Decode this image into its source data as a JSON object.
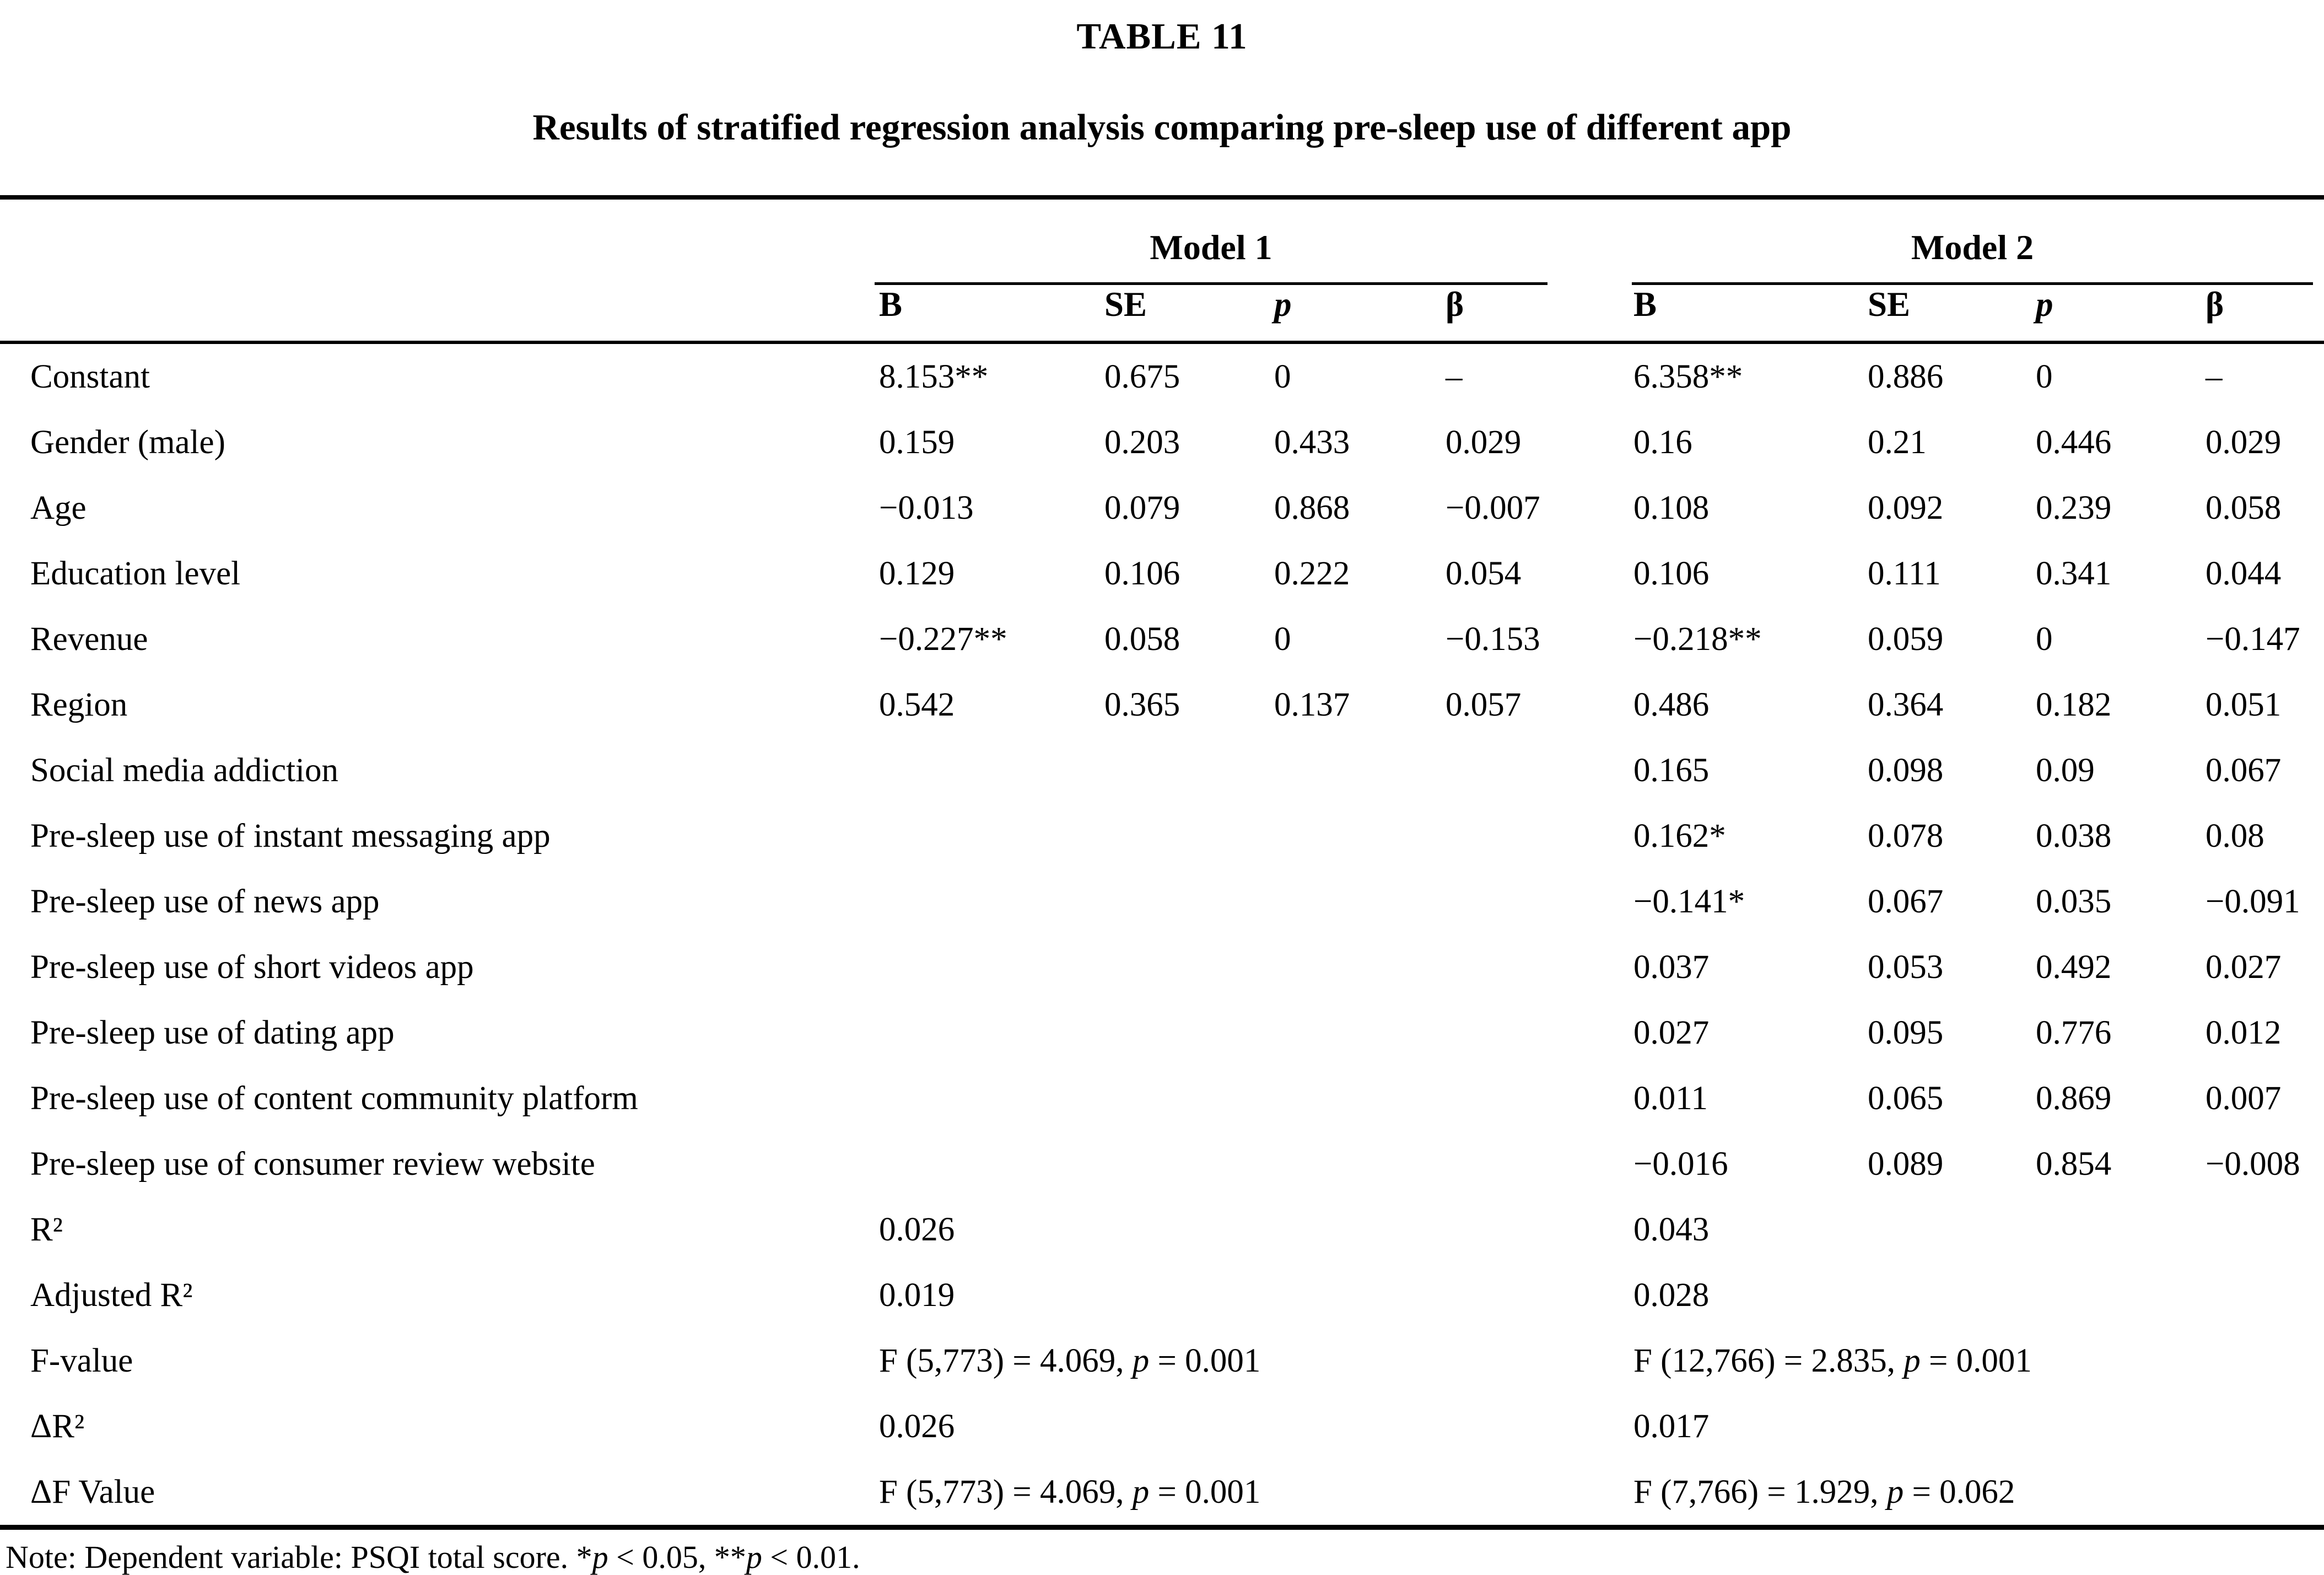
{
  "title": "TABLE 11",
  "subtitle": "Results of stratified regression analysis comparing pre-sleep use of different app",
  "table": {
    "model_headers": [
      "Model 1",
      "Model 2"
    ],
    "column_headers": [
      "B",
      "SE",
      "p",
      "β",
      "B",
      "SE",
      "p",
      "β"
    ],
    "rows": [
      {
        "label": "Constant",
        "cells": [
          "8.153**",
          "0.675",
          "0",
          "–",
          "6.358**",
          "0.886",
          "0",
          "–"
        ]
      },
      {
        "label": "Gender (male)",
        "cells": [
          "0.159",
          "0.203",
          "0.433",
          "0.029",
          "0.16",
          "0.21",
          "0.446",
          "0.029"
        ]
      },
      {
        "label": "Age",
        "cells": [
          "−0.013",
          "0.079",
          "0.868",
          "−0.007",
          "0.108",
          "0.092",
          "0.239",
          "0.058"
        ]
      },
      {
        "label": "Education level",
        "cells": [
          "0.129",
          "0.106",
          "0.222",
          "0.054",
          "0.106",
          "0.111",
          "0.341",
          "0.044"
        ]
      },
      {
        "label": "Revenue",
        "cells": [
          "−0.227**",
          "0.058",
          "0",
          "−0.153",
          "−0.218**",
          "0.059",
          "0",
          "−0.147"
        ]
      },
      {
        "label": "Region",
        "cells": [
          "0.542",
          "0.365",
          "0.137",
          "0.057",
          "0.486",
          "0.364",
          "0.182",
          "0.051"
        ]
      },
      {
        "label": "Social media addiction",
        "cells": [
          "",
          "",
          "",
          "",
          "0.165",
          "0.098",
          "0.09",
          "0.067"
        ]
      },
      {
        "label": "Pre-sleep use of instant messaging app",
        "cells": [
          "",
          "",
          "",
          "",
          "0.162*",
          "0.078",
          "0.038",
          "0.08"
        ]
      },
      {
        "label": "Pre-sleep use of news app",
        "cells": [
          "",
          "",
          "",
          "",
          "−0.141*",
          "0.067",
          "0.035",
          "−0.091"
        ]
      },
      {
        "label": "Pre-sleep use of short videos app",
        "cells": [
          "",
          "",
          "",
          "",
          "0.037",
          "0.053",
          "0.492",
          "0.027"
        ]
      },
      {
        "label": "Pre-sleep use of dating app",
        "cells": [
          "",
          "",
          "",
          "",
          "0.027",
          "0.095",
          "0.776",
          "0.012"
        ]
      },
      {
        "label": "Pre-sleep use of content community platform",
        "cells": [
          "",
          "",
          "",
          "",
          "0.011",
          "0.065",
          "0.869",
          "0.007"
        ]
      },
      {
        "label": "Pre-sleep use of consumer review website",
        "cells": [
          "",
          "",
          "",
          "",
          "−0.016",
          "0.089",
          "0.854",
          "−0.008"
        ]
      },
      {
        "label": "R²",
        "cells": [
          "0.026",
          "",
          "",
          "",
          "0.043",
          "",
          "",
          ""
        ]
      },
      {
        "label": "Adjusted R²",
        "cells": [
          "0.019",
          "",
          "",
          "",
          "0.028",
          "",
          "",
          ""
        ]
      },
      {
        "label": "F-value",
        "cells": [
          "F (5,773) = 4.069, p = 0.001",
          "",
          "",
          "",
          "F (12,766) = 2.835, p = 0.001",
          "",
          "",
          ""
        ]
      },
      {
        "label": "ΔR²",
        "cells": [
          "0.026",
          "",
          "",
          "",
          "0.017",
          "",
          "",
          ""
        ]
      },
      {
        "label": "ΔF Value",
        "cells": [
          "F (5,773) = 4.069, p = 0.001",
          "",
          "",
          "",
          "F (7,766) = 1.929, p = 0.062",
          "",
          "",
          ""
        ]
      }
    ]
  },
  "note": "Note: Dependent variable: PSQI total score. *p < 0.05, **p < 0.01."
}
